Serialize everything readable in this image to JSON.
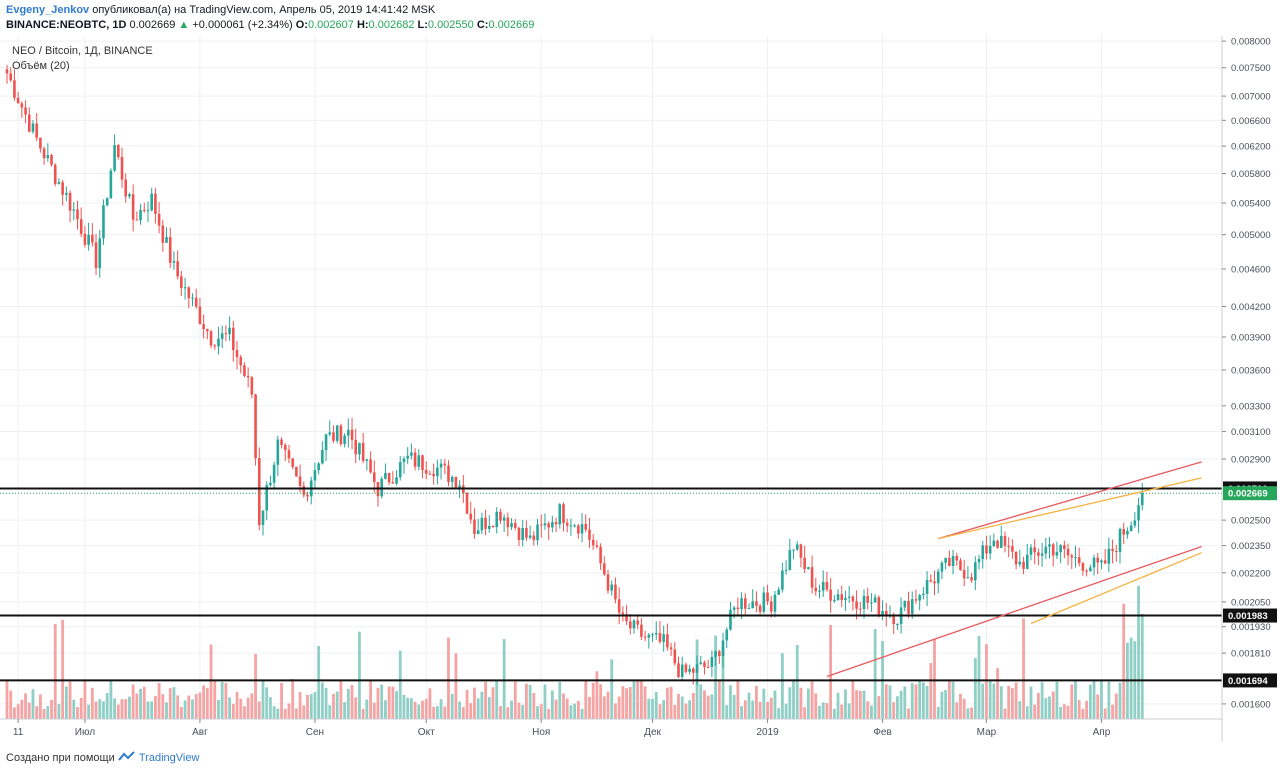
{
  "header": {
    "author": "Evgeny_Jenkov",
    "published": "опубликовал(а) на TradingView.com, Апрель 05, 2019 14:41:42 MSK",
    "symbol": "BINANCE:NEOBTC, 1D",
    "last": "0.002669",
    "change": "+0.000061 (+2.34%)",
    "open_label": "O:",
    "open": "0.002607",
    "high_label": "H:",
    "high": "0.002682",
    "low_label": "L:",
    "low": "0.002550",
    "close_label": "C:",
    "close": "0.002669"
  },
  "legend": {
    "title": "NEO / Bitcoin, 1Д, BINANCE",
    "volume": "Объём (20)"
  },
  "footer": {
    "made_with": "Создано при помощи",
    "brand": "TradingView"
  },
  "colors": {
    "up": "#26a69a",
    "down": "#ef5350",
    "vol_up": "#8fcfc6",
    "vol_down": "#f5a3a3",
    "grid": "#eef0f3",
    "trend_red": "#e8595f",
    "trend_orange": "#f5b342",
    "price_badge": "#26a65b"
  },
  "chart_data": {
    "type": "candlestick",
    "title": "NEO / Bitcoin, 1Д, BINANCE",
    "y_scale": "log",
    "ylim": [
      0.00155,
      0.0081
    ],
    "y_ticks": [
      "0.008000",
      "0.007500",
      "0.007000",
      "0.006600",
      "0.006200",
      "0.005800",
      "0.005400",
      "0.005000",
      "0.004600",
      "0.004200",
      "0.003900",
      "0.003600",
      "0.003300",
      "0.003100",
      "0.002900",
      "0.002500",
      "0.002350",
      "0.002200",
      "0.002050",
      "0.001930",
      "0.001810",
      "0.001600"
    ],
    "x_ticks": [
      "11",
      "Июл",
      "Авг",
      "Сен",
      "Окт",
      "Ноя",
      "Дек",
      "2019",
      "Фев",
      "Мар",
      "Апр"
    ],
    "x_tick_days": [
      3,
      21,
      52,
      83,
      113,
      144,
      174,
      205,
      236,
      264,
      295
    ],
    "horizontal_levels": [
      {
        "price": 0.0027,
        "label": "0.002700"
      },
      {
        "price": 0.001983,
        "label": "0.001983"
      },
      {
        "price": 0.001694,
        "label": "0.001694"
      }
    ],
    "last_price": {
      "price": 0.002669,
      "label": "0.002669"
    },
    "trendlines": [
      {
        "color": "red",
        "from": {
          "day": 221,
          "price": 0.00171
        },
        "to": {
          "day": 322,
          "price": 0.002345
        }
      },
      {
        "color": "red",
        "from": {
          "day": 251,
          "price": 0.00239
        },
        "to": {
          "day": 322,
          "price": 0.00288
        }
      },
      {
        "color": "orange",
        "from": {
          "day": 251,
          "price": 0.00239
        },
        "to": {
          "day": 322,
          "price": 0.00277
        }
      },
      {
        "color": "orange",
        "from": {
          "day": 276,
          "price": 0.001945
        },
        "to": {
          "day": 322,
          "price": 0.00231
        }
      }
    ],
    "close_path": [
      {
        "day": 0,
        "close": 0.0074
      },
      {
        "day": 8,
        "close": 0.0063
      },
      {
        "day": 18,
        "close": 0.0053
      },
      {
        "day": 24,
        "close": 0.0047
      },
      {
        "day": 29,
        "close": 0.0062
      },
      {
        "day": 34,
        "close": 0.0052
      },
      {
        "day": 39,
        "close": 0.00545
      },
      {
        "day": 45,
        "close": 0.0046
      },
      {
        "day": 55,
        "close": 0.0039
      },
      {
        "day": 60,
        "close": 0.0039
      },
      {
        "day": 66,
        "close": 0.0034
      },
      {
        "day": 68,
        "close": 0.0025
      },
      {
        "day": 73,
        "close": 0.003
      },
      {
        "day": 80,
        "close": 0.00265
      },
      {
        "day": 86,
        "close": 0.00305
      },
      {
        "day": 92,
        "close": 0.0031
      },
      {
        "day": 100,
        "close": 0.0027
      },
      {
        "day": 108,
        "close": 0.0029
      },
      {
        "day": 115,
        "close": 0.00285
      },
      {
        "day": 122,
        "close": 0.00275
      },
      {
        "day": 126,
        "close": 0.00245
      },
      {
        "day": 133,
        "close": 0.00255
      },
      {
        "day": 141,
        "close": 0.00238
      },
      {
        "day": 149,
        "close": 0.00255
      },
      {
        "day": 156,
        "close": 0.00245
      },
      {
        "day": 161,
        "close": 0.0022
      },
      {
        "day": 166,
        "close": 0.00195
      },
      {
        "day": 172,
        "close": 0.00188
      },
      {
        "day": 177,
        "close": 0.00185
      },
      {
        "day": 182,
        "close": 0.00172
      },
      {
        "day": 190,
        "close": 0.00176
      },
      {
        "day": 197,
        "close": 0.00205
      },
      {
        "day": 206,
        "close": 0.00205
      },
      {
        "day": 212,
        "close": 0.00235
      },
      {
        "day": 218,
        "close": 0.00212
      },
      {
        "day": 226,
        "close": 0.00208
      },
      {
        "day": 232,
        "close": 0.00205
      },
      {
        "day": 240,
        "close": 0.00198
      },
      {
        "day": 246,
        "close": 0.0021
      },
      {
        "day": 254,
        "close": 0.00225
      },
      {
        "day": 260,
        "close": 0.0022
      },
      {
        "day": 266,
        "close": 0.0024
      },
      {
        "day": 273,
        "close": 0.00225
      },
      {
        "day": 281,
        "close": 0.00235
      },
      {
        "day": 287,
        "close": 0.00228
      },
      {
        "day": 295,
        "close": 0.00222
      },
      {
        "day": 300,
        "close": 0.0024
      },
      {
        "day": 303,
        "close": 0.0025
      },
      {
        "day": 306,
        "close": 0.002669
      }
    ]
  }
}
